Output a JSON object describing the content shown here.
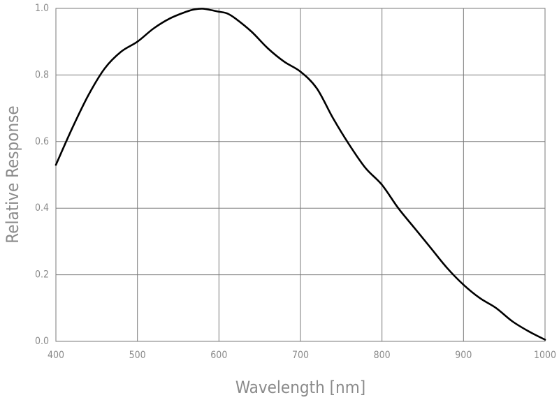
{
  "chart_data": {
    "type": "line",
    "xlabel": "Wavelength [nm]",
    "ylabel": "Relative Response",
    "xlim": [
      400,
      1000
    ],
    "ylim": [
      0.0,
      1.0
    ],
    "x_ticks": [
      400,
      500,
      600,
      700,
      800,
      900,
      1000
    ],
    "y_ticks": [
      0.0,
      0.2,
      0.4,
      0.6,
      0.8,
      1.0
    ],
    "x_tick_labels": [
      "400",
      "500",
      "600",
      "700",
      "800",
      "900",
      "1000"
    ],
    "y_tick_labels": [
      "0.0",
      "0.2",
      "0.4",
      "0.6",
      "0.8",
      "1.0"
    ],
    "grid": true,
    "series": [
      {
        "color": "#000000",
        "x": [
          400,
          420,
          440,
          460,
          480,
          500,
          520,
          540,
          560,
          570,
          580,
          590,
          600,
          610,
          620,
          640,
          660,
          680,
          700,
          720,
          740,
          760,
          780,
          800,
          820,
          840,
          860,
          880,
          900,
          920,
          940,
          960,
          980,
          1000
        ],
        "y": [
          0.53,
          0.64,
          0.74,
          0.82,
          0.87,
          0.9,
          0.94,
          0.97,
          0.99,
          0.997,
          0.999,
          0.995,
          0.99,
          0.985,
          0.97,
          0.93,
          0.88,
          0.84,
          0.81,
          0.76,
          0.67,
          0.59,
          0.52,
          0.47,
          0.4,
          0.34,
          0.28,
          0.22,
          0.17,
          0.13,
          0.1,
          0.06,
          0.03,
          0.005
        ]
      }
    ]
  },
  "colors": {
    "grid": "#7a7a7a",
    "text": "#8a8a8a",
    "line": "#000000"
  }
}
